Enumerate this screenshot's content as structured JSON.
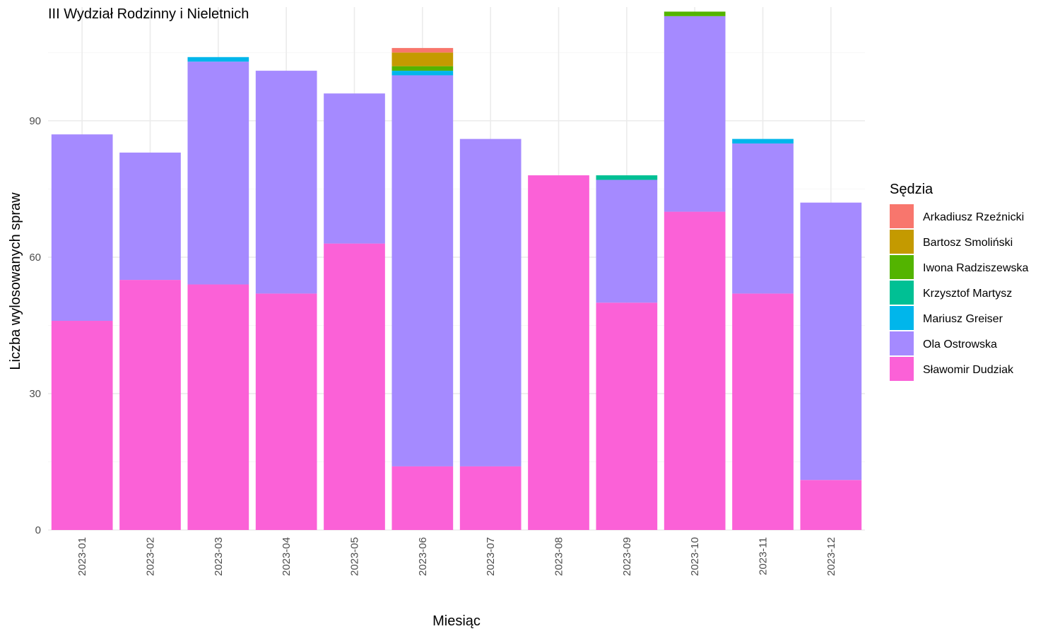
{
  "chart_data": {
    "type": "bar",
    "stacked": true,
    "title": "III Wydział Rodzinny i Nieletnich",
    "xlabel": "Miesiąc",
    "ylabel": "Liczba wylosowanych spraw",
    "ylim": [
      0,
      115
    ],
    "yticks": [
      0,
      30,
      60,
      90
    ],
    "grid": true,
    "legend_title": "Sędzia",
    "legend_position": "right",
    "categories": [
      "2023-01",
      "2023-02",
      "2023-03",
      "2023-04",
      "2023-05",
      "2023-06",
      "2023-07",
      "2023-08",
      "2023-09",
      "2023-10",
      "2023-11",
      "2023-12"
    ],
    "series": [
      {
        "name": "Arkadiusz Rzeźnicki",
        "color": "#F8766D",
        "values": [
          0,
          0,
          0,
          0,
          0,
          1,
          0,
          0,
          0,
          0,
          0,
          0
        ]
      },
      {
        "name": "Bartosz Smoliński",
        "color": "#C49A00",
        "values": [
          0,
          0,
          0,
          0,
          0,
          3,
          0,
          0,
          0,
          0,
          0,
          0
        ]
      },
      {
        "name": "Iwona Radziszewska",
        "color": "#53B400",
        "values": [
          0,
          0,
          0,
          0,
          0,
          1,
          0,
          0,
          0,
          1,
          0,
          0
        ]
      },
      {
        "name": "Krzysztof Martysz",
        "color": "#00C094",
        "values": [
          0,
          0,
          0,
          0,
          0,
          0,
          0,
          0,
          1,
          0,
          0,
          0
        ]
      },
      {
        "name": "Mariusz Greiser",
        "color": "#00B6EB",
        "values": [
          0,
          0,
          1,
          0,
          0,
          1,
          0,
          0,
          0,
          0,
          1,
          0
        ]
      },
      {
        "name": "Ola Ostrowska",
        "color": "#A58AFF",
        "values": [
          41,
          28,
          49,
          49,
          33,
          86,
          72,
          0,
          27,
          43,
          33,
          61
        ]
      },
      {
        "name": "Sławomir Dudziak",
        "color": "#FB61D7",
        "values": [
          46,
          55,
          54,
          52,
          63,
          14,
          14,
          78,
          50,
          70,
          52,
          11
        ]
      }
    ]
  }
}
